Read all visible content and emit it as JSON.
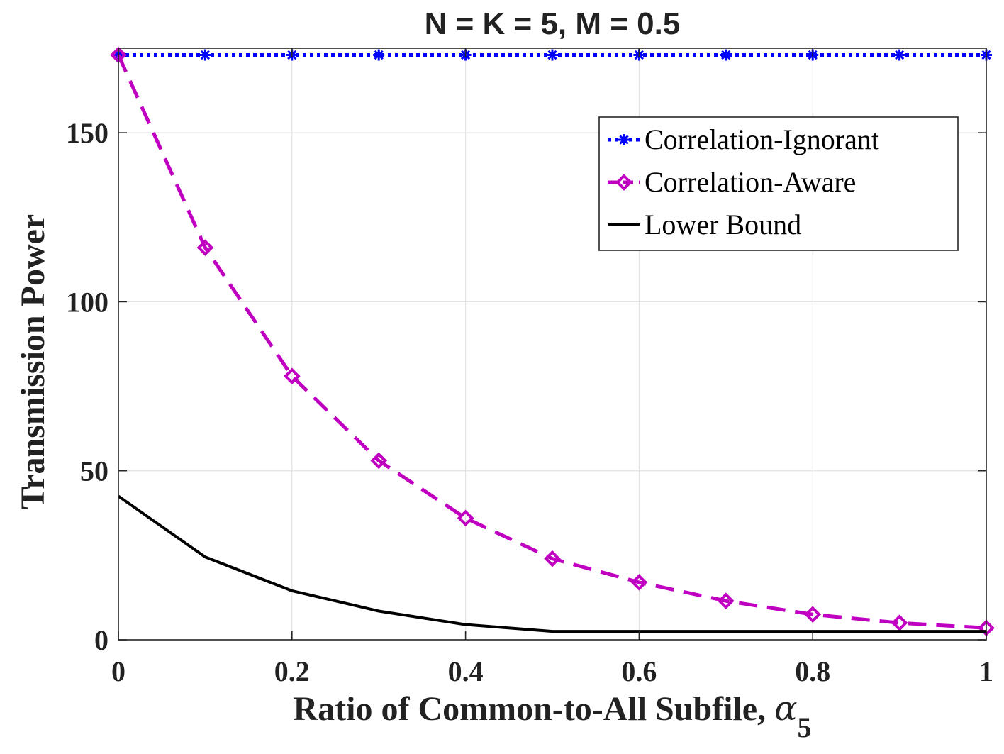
{
  "chart_data": {
    "type": "line",
    "title": "N = K = 5, M = 0.5",
    "xlabel_main": "Ratio of Common-to-All Subfile, ",
    "xlabel_symbol": "α",
    "xlabel_subscript": "5",
    "ylabel": "Transmission Power",
    "xlim": [
      0,
      1
    ],
    "ylim": [
      0,
      175
    ],
    "x_ticks": [
      0,
      0.2,
      0.4,
      0.6,
      0.8,
      1
    ],
    "x_tick_labels": [
      "0",
      "0.2",
      "0.4",
      "0.6",
      "0.8",
      "1"
    ],
    "y_ticks": [
      0,
      50,
      100,
      150
    ],
    "y_tick_labels": [
      "0",
      "50",
      "100",
      "150"
    ],
    "grid": true,
    "legend_position": "top-right",
    "x": [
      0,
      0.1,
      0.2,
      0.3,
      0.4,
      0.5,
      0.6,
      0.7,
      0.8,
      0.9,
      1.0
    ],
    "series": [
      {
        "name": "Correlation-Ignorant",
        "color": "#0000ff",
        "line_style": "dotted",
        "marker": "asterisk",
        "values": [
          173,
          173,
          173,
          173,
          173,
          173,
          173,
          173,
          173,
          173,
          173
        ]
      },
      {
        "name": "Correlation-Aware",
        "color": "#c000c0",
        "line_style": "dashed",
        "marker": "diamond",
        "values": [
          173,
          116,
          78,
          53,
          36,
          24,
          17,
          11.5,
          7.5,
          5,
          3.5
        ]
      },
      {
        "name": "Lower Bound",
        "color": "#000000",
        "line_style": "solid",
        "marker": "none",
        "values": [
          42.5,
          24.5,
          14.5,
          8.5,
          4.5,
          2.5,
          2.5,
          2.5,
          2.5,
          2.5,
          2.5
        ]
      }
    ]
  }
}
